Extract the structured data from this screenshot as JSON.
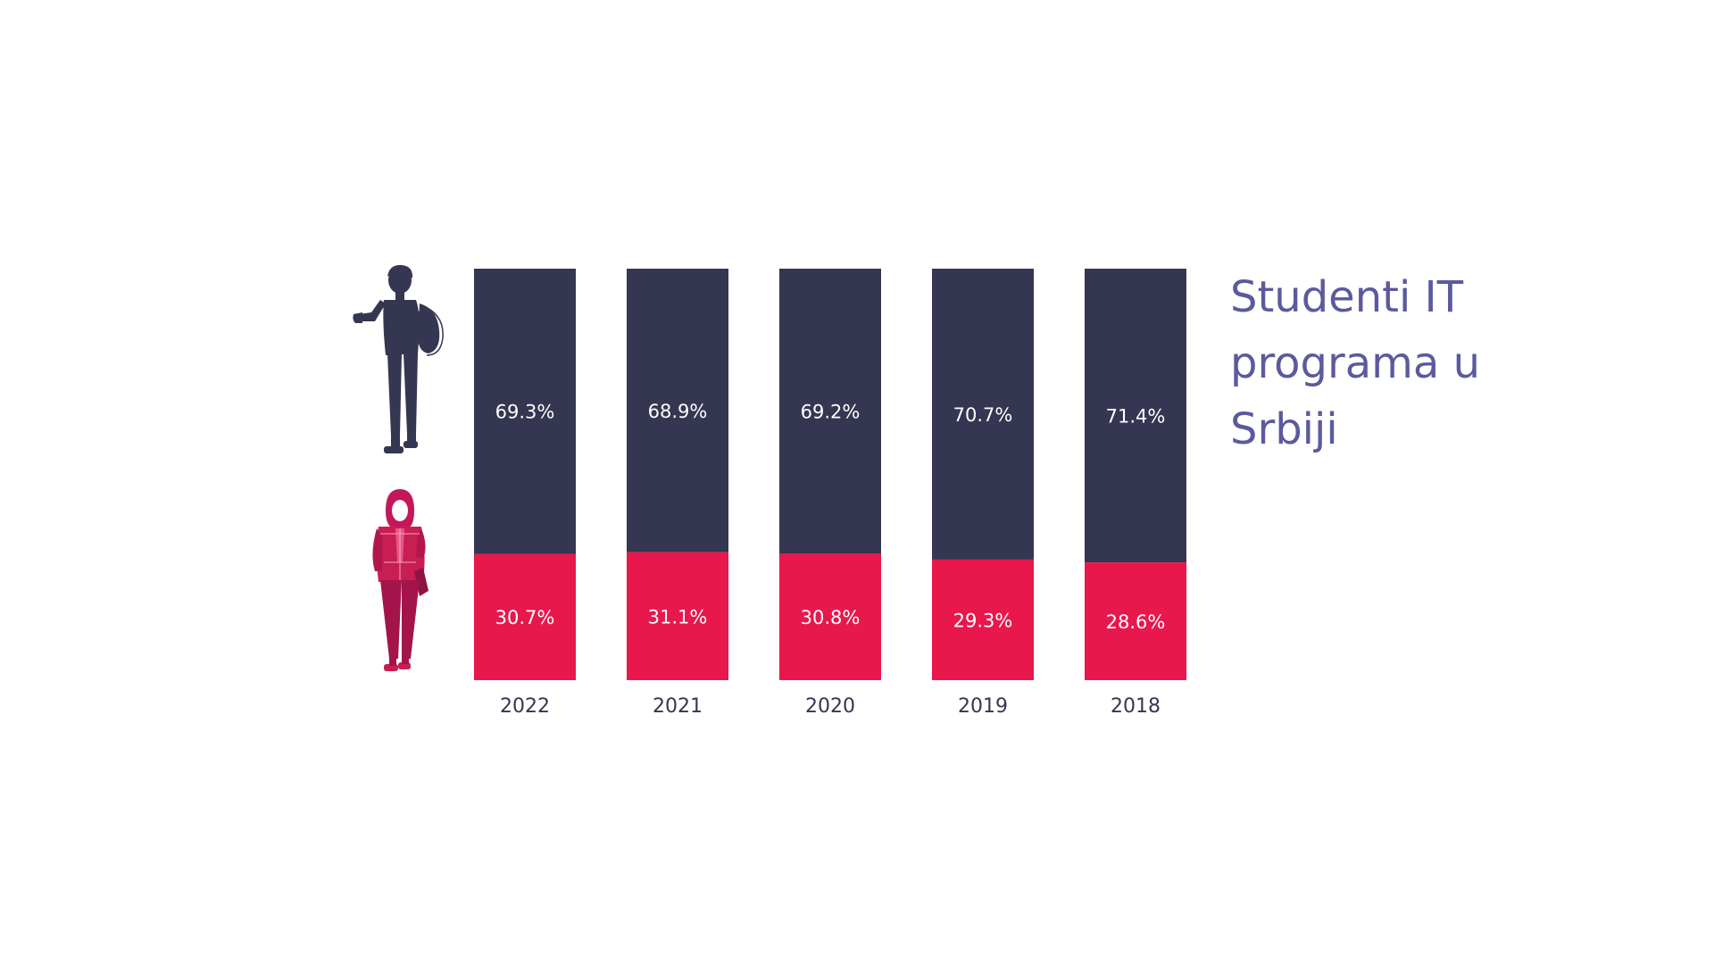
{
  "chart_data": {
    "type": "bar",
    "stacked": true,
    "orientation": "vertical",
    "title": "Studenti IT programa u Srbiji",
    "categories": [
      "2022",
      "2021",
      "2020",
      "2019",
      "2018"
    ],
    "series": [
      {
        "values": [
          69.3,
          68.9,
          69.2,
          70.7,
          71.4
        ],
        "labels": [
          "69.3%",
          "68.9%",
          "69.2%",
          "70.7%",
          "71.4%"
        ],
        "color": "#353651",
        "icon": "male-student-icon"
      },
      {
        "values": [
          30.7,
          31.1,
          30.8,
          29.3,
          28.6
        ],
        "labels": [
          "30.7%",
          "31.1%",
          "30.8%",
          "29.3%",
          "28.6%"
        ],
        "color": "#e8174c",
        "icon": "female-student-icon"
      }
    ],
    "ylim": [
      0,
      100
    ],
    "grid": false,
    "legend": "left (icons)"
  },
  "colors": {
    "title": "#5a5a9e",
    "tick_text": "#353651",
    "bar_text": "#ffffff",
    "background": "#ffffff"
  }
}
